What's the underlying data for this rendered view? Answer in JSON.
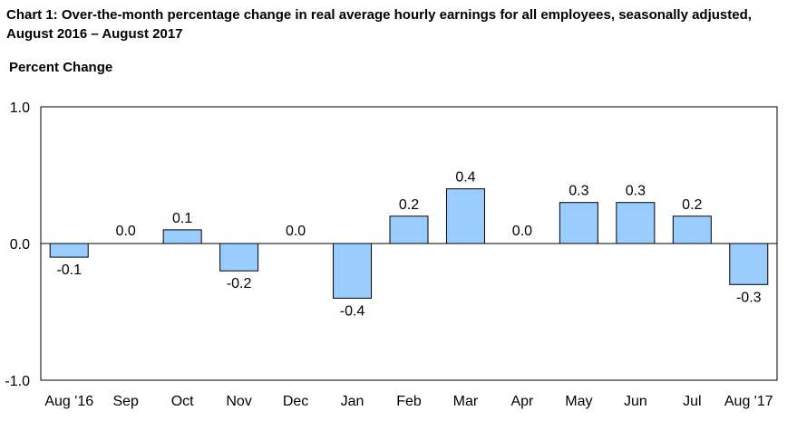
{
  "title": "Chart 1: Over-the-month percentage change in real average hourly earnings for all employees, seasonally adjusted, August 2016 – August 2017",
  "ylabel": "Percent Change",
  "chart_data": {
    "type": "bar",
    "title": "Chart 1: Over-the-month percentage change in real average hourly earnings for all employees, seasonally adjusted, August 2016 – August 2017",
    "xlabel": "",
    "ylabel": "Percent Change",
    "categories": [
      "Aug '16",
      "Sep",
      "Oct",
      "Nov",
      "Dec",
      "Jan",
      "Feb",
      "Mar",
      "Apr",
      "May",
      "Jun",
      "Jul",
      "Aug '17"
    ],
    "values": [
      -0.1,
      0.0,
      0.1,
      -0.2,
      0.0,
      -0.4,
      0.2,
      0.4,
      0.0,
      0.3,
      0.3,
      0.2,
      -0.3
    ],
    "data_labels": [
      "-0.1",
      "0.0",
      "0.1",
      "-0.2",
      "0.0",
      "-0.4",
      "0.2",
      "0.4",
      "0.0",
      "0.3",
      "0.3",
      "0.2",
      "-0.3"
    ],
    "ylim": [
      -1.0,
      1.0
    ],
    "yticks": [
      "1.0",
      "0.0",
      "-1.0"
    ],
    "grid": false,
    "legend": "none",
    "bar_color": "#99ccff",
    "bar_edge_color": "#000000"
  }
}
